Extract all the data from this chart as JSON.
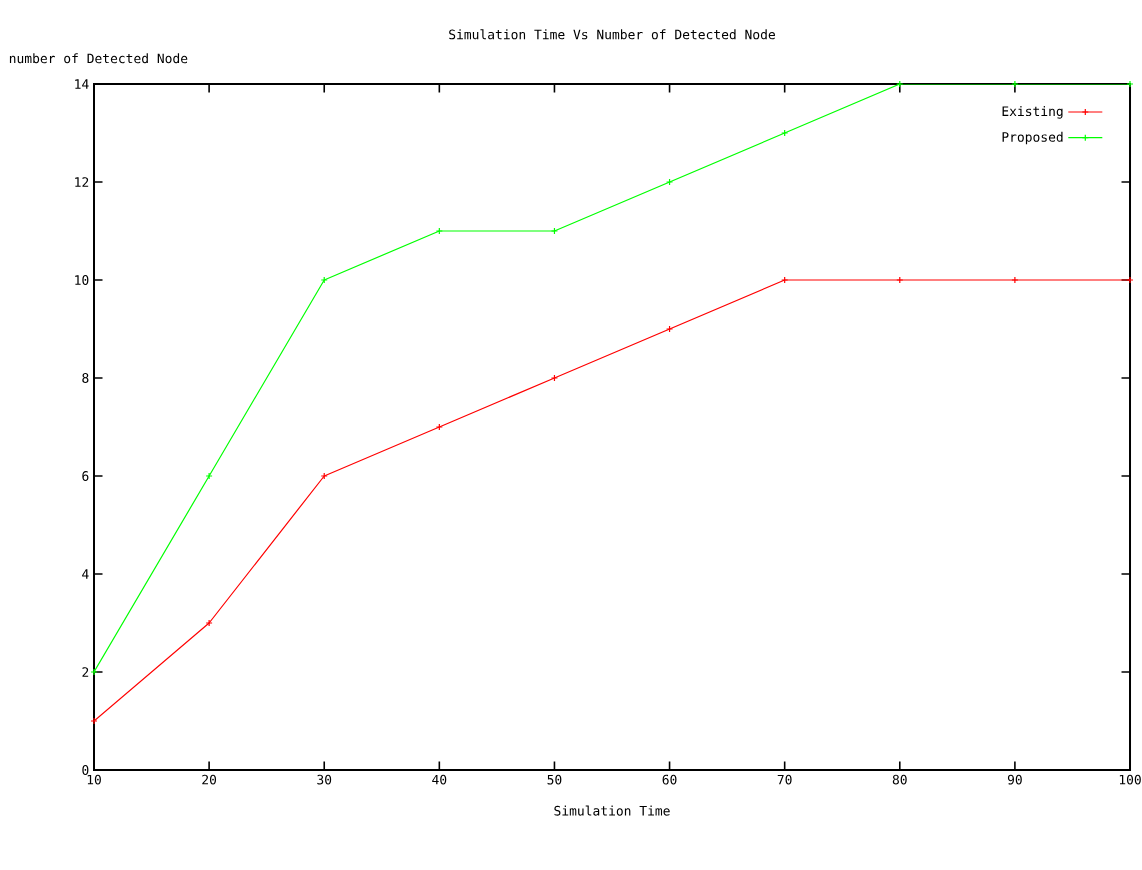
{
  "chart_data": {
    "type": "line",
    "title": "Simulation Time Vs Number of Detected Node",
    "xlabel": "Simulation Time",
    "ylabel": "number of Detected Node",
    "x": [
      10,
      20,
      30,
      40,
      50,
      60,
      70,
      80,
      90,
      100
    ],
    "series": [
      {
        "name": "Existing",
        "color": "#ff0000",
        "values": [
          1,
          3,
          6,
          7,
          8,
          9,
          10,
          10,
          10,
          10
        ]
      },
      {
        "name": "Proposed",
        "color": "#00ff00",
        "values": [
          2,
          6,
          10,
          11,
          11,
          12,
          13,
          14,
          14,
          14
        ]
      }
    ],
    "xlim": [
      10,
      100
    ],
    "ylim": [
      0,
      14
    ],
    "xticks": [
      10,
      20,
      30,
      40,
      50,
      60,
      70,
      80,
      90,
      100
    ],
    "yticks": [
      0,
      2,
      4,
      6,
      8,
      10,
      12,
      14
    ],
    "grid": false,
    "legend": "top right",
    "marker": "cross",
    "line_style": "solid"
  }
}
